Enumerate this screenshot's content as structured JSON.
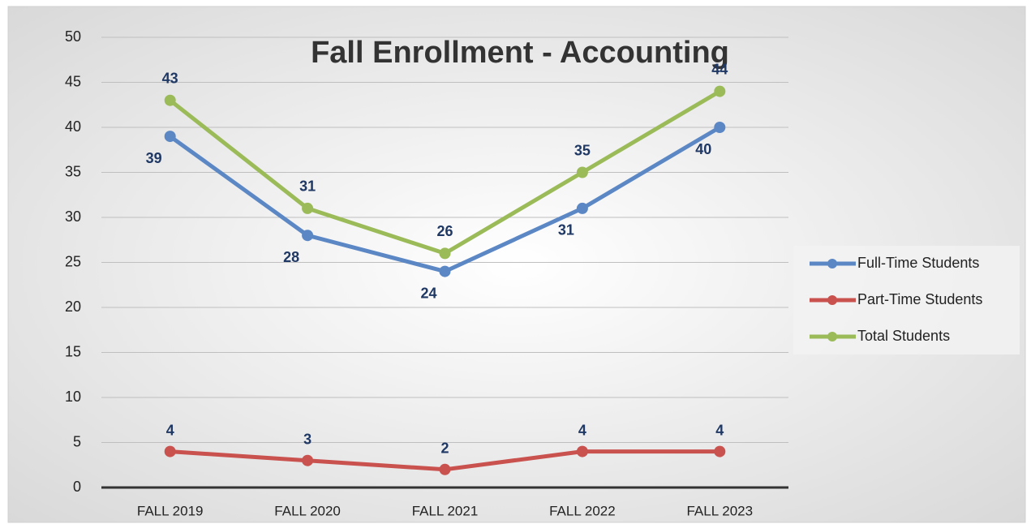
{
  "chart_data": {
    "type": "line",
    "title": "Fall Enrollment - Accounting",
    "categories": [
      "FALL 2019",
      "FALL 2020",
      "FALL 2021",
      "FALL 2022",
      "FALL 2023"
    ],
    "series": [
      {
        "name": "Full-Time Students",
        "color": "#5b87c5",
        "values": [
          39,
          28,
          24,
          31,
          40
        ]
      },
      {
        "name": "Part-Time Students",
        "color": "#c9524f",
        "values": [
          4,
          3,
          2,
          4,
          4
        ]
      },
      {
        "name": "Total Students",
        "color": "#9bbb59",
        "values": [
          43,
          31,
          26,
          35,
          44
        ]
      }
    ],
    "ylim": [
      0,
      50
    ],
    "yticks": [
      0,
      5,
      10,
      15,
      20,
      25,
      30,
      35,
      40,
      45,
      50
    ],
    "grid": true,
    "legend": "right"
  }
}
